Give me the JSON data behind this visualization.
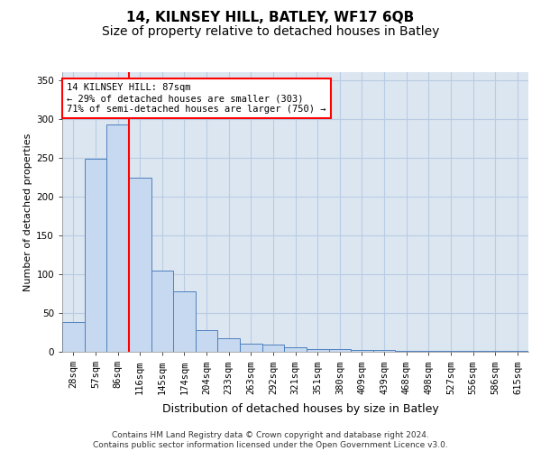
{
  "title1": "14, KILNSEY HILL, BATLEY, WF17 6QB",
  "title2": "Size of property relative to detached houses in Batley",
  "xlabel": "Distribution of detached houses by size in Batley",
  "ylabel": "Number of detached properties",
  "categories": [
    "28sqm",
    "57sqm",
    "86sqm",
    "116sqm",
    "145sqm",
    "174sqm",
    "204sqm",
    "233sqm",
    "263sqm",
    "292sqm",
    "321sqm",
    "351sqm",
    "380sqm",
    "409sqm",
    "439sqm",
    "468sqm",
    "498sqm",
    "527sqm",
    "556sqm",
    "586sqm",
    "615sqm"
  ],
  "values": [
    38,
    248,
    293,
    224,
    104,
    78,
    28,
    18,
    10,
    9,
    6,
    4,
    3,
    2,
    2,
    1,
    1,
    1,
    1,
    1,
    1
  ],
  "bar_color": "#c6d9f0",
  "bar_edge_color": "#4f81bd",
  "grid_color": "#b8cce4",
  "plot_bg_color": "#dce6f1",
  "fig_bg_color": "#ffffff",
  "red_line_x": 2.5,
  "annotation_text": "14 KILNSEY HILL: 87sqm\n← 29% of detached houses are smaller (303)\n71% of semi-detached houses are larger (750) →",
  "footer1": "Contains HM Land Registry data © Crown copyright and database right 2024.",
  "footer2": "Contains public sector information licensed under the Open Government Licence v3.0.",
  "ylim": [
    0,
    360
  ],
  "yticks": [
    0,
    50,
    100,
    150,
    200,
    250,
    300,
    350
  ],
  "title1_fontsize": 11,
  "title2_fontsize": 10,
  "xlabel_fontsize": 9,
  "ylabel_fontsize": 8,
  "tick_fontsize": 7.5,
  "annot_fontsize": 7.5,
  "footer_fontsize": 6.5
}
